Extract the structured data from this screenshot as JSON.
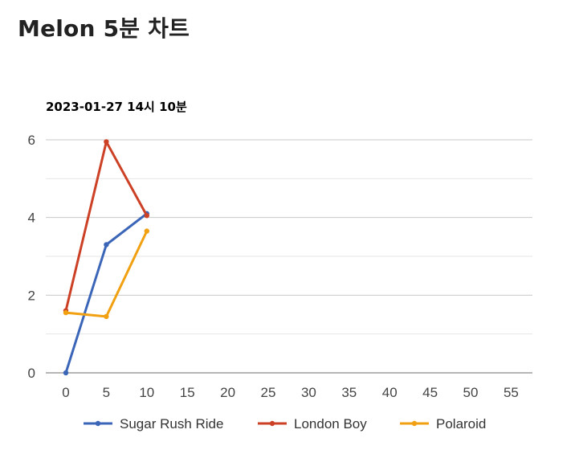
{
  "page": {
    "title": "Melon 5분 차트"
  },
  "chart_data": {
    "type": "line",
    "title": "2023-01-27 14시 10분",
    "xlabel": "",
    "ylabel": "",
    "x": [
      0,
      5,
      10
    ],
    "xlim": [
      0,
      55
    ],
    "ylim": [
      0,
      6
    ],
    "x_ticks": [
      "0",
      "5",
      "10",
      "15",
      "20",
      "25",
      "30",
      "35",
      "40",
      "45",
      "50",
      "55"
    ],
    "y_ticks": [
      "0",
      "2",
      "4",
      "6"
    ],
    "grid": true,
    "legend_position": "bottom",
    "series": [
      {
        "name": "Sugar Rush Ride",
        "color": "#3b66b8",
        "values": [
          0,
          3.3,
          4.1
        ]
      },
      {
        "name": "London Boy",
        "color": "#cc4125",
        "values": [
          1.6,
          5.95,
          4.05
        ]
      },
      {
        "name": "Polaroid",
        "color": "#f0a010",
        "values": [
          1.55,
          1.45,
          3.65
        ]
      }
    ]
  }
}
